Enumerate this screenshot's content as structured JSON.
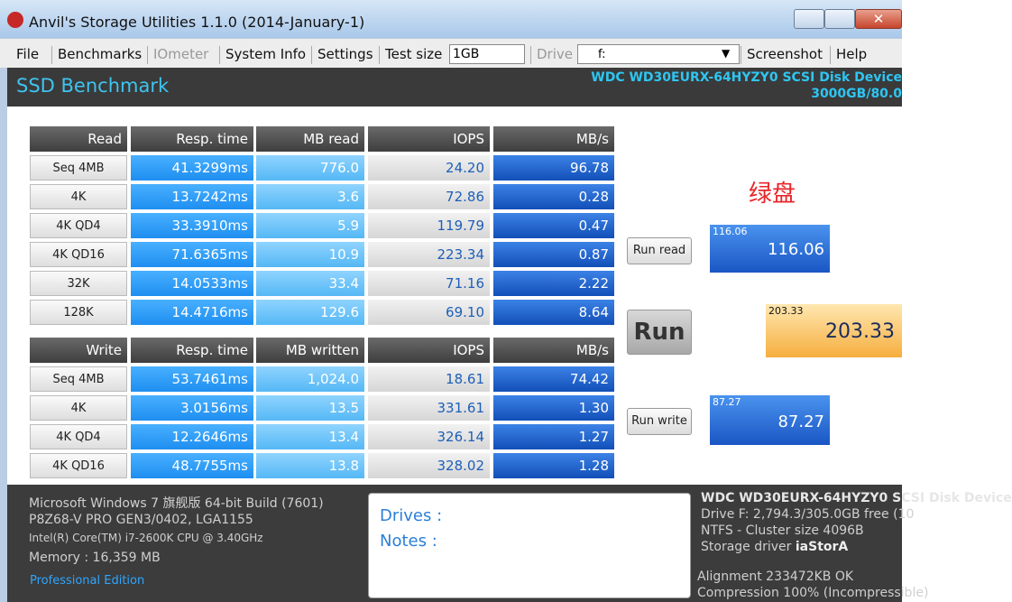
{
  "window": {
    "title": "Anvil's Storage Utilities 1.1.0 (2014-January-1)"
  },
  "menu": {
    "items": [
      "File",
      "Benchmarks",
      "IOmeter",
      "System Info",
      "Settings"
    ],
    "test_size_label": "Test size",
    "test_size": "1GB",
    "drive_label": "Drive",
    "drive": "f:",
    "right_items": [
      "Screenshot",
      "Help"
    ]
  },
  "header": {
    "title": "SSD Benchmark",
    "device": "WDC WD30EURX-64HYZY0 SCSI Disk Device",
    "capacity": "3000GB/80.0"
  },
  "read": {
    "columns": [
      "Read",
      "Resp. time",
      "MB read",
      "IOPS",
      "MB/s"
    ],
    "rows": [
      [
        "Seq 4MB",
        "41.3299ms",
        "776.0",
        "24.20",
        "96.78"
      ],
      [
        "4K",
        "13.7242ms",
        "3.6",
        "72.86",
        "0.28"
      ],
      [
        "4K QD4",
        "33.3910ms",
        "5.9",
        "119.79",
        "0.47"
      ],
      [
        "4K QD16",
        "71.6365ms",
        "10.9",
        "223.34",
        "0.87"
      ],
      [
        "32K",
        "14.0533ms",
        "33.4",
        "71.16",
        "2.22"
      ],
      [
        "128K",
        "14.4716ms",
        "129.6",
        "69.10",
        "8.64"
      ]
    ]
  },
  "write": {
    "columns": [
      "Write",
      "Resp. time",
      "MB written",
      "IOPS",
      "MB/s"
    ],
    "rows": [
      [
        "Seq 4MB",
        "53.7461ms",
        "1,024.0",
        "18.61",
        "74.42"
      ],
      [
        "4K",
        "3.0156ms",
        "13.5",
        "331.61",
        "1.30"
      ],
      [
        "4K QD4",
        "12.2646ms",
        "13.4",
        "326.14",
        "1.27"
      ],
      [
        "4K QD16",
        "48.7755ms",
        "13.8",
        "328.02",
        "1.28"
      ]
    ]
  },
  "buttons": {
    "run_read": "Run read",
    "run": "Run",
    "run_write": "Run write"
  },
  "scores": {
    "read": "116.06",
    "total": "203.33",
    "write": "87.27"
  },
  "annotation": "绿盘",
  "system": {
    "os": "Microsoft Windows 7 旗舰版  64-bit Build (7601)",
    "board": "P8Z68-V PRO GEN3/0402, LGA1155",
    "cpu": "Intel(R) Core(TM) i7-2600K CPU @ 3.40GHz",
    "memory": "Memory : 16,359 MB",
    "edition": "Professional Edition"
  },
  "notes": {
    "drives": "Drives :",
    "notes": "Notes :"
  },
  "drive_info": {
    "name": "WDC WD30EURX-64HYZY0 SCSI Disk Device",
    "free": "Drive F: 2,794.3/305.0GB free (10",
    "ntfs": "NTFS - Cluster size 4096B",
    "driver_label": "Storage driver",
    "driver": "iaStorA",
    "alignment": "Alignment 233472KB OK",
    "compression": "Compression 100% (Incompressible)"
  }
}
